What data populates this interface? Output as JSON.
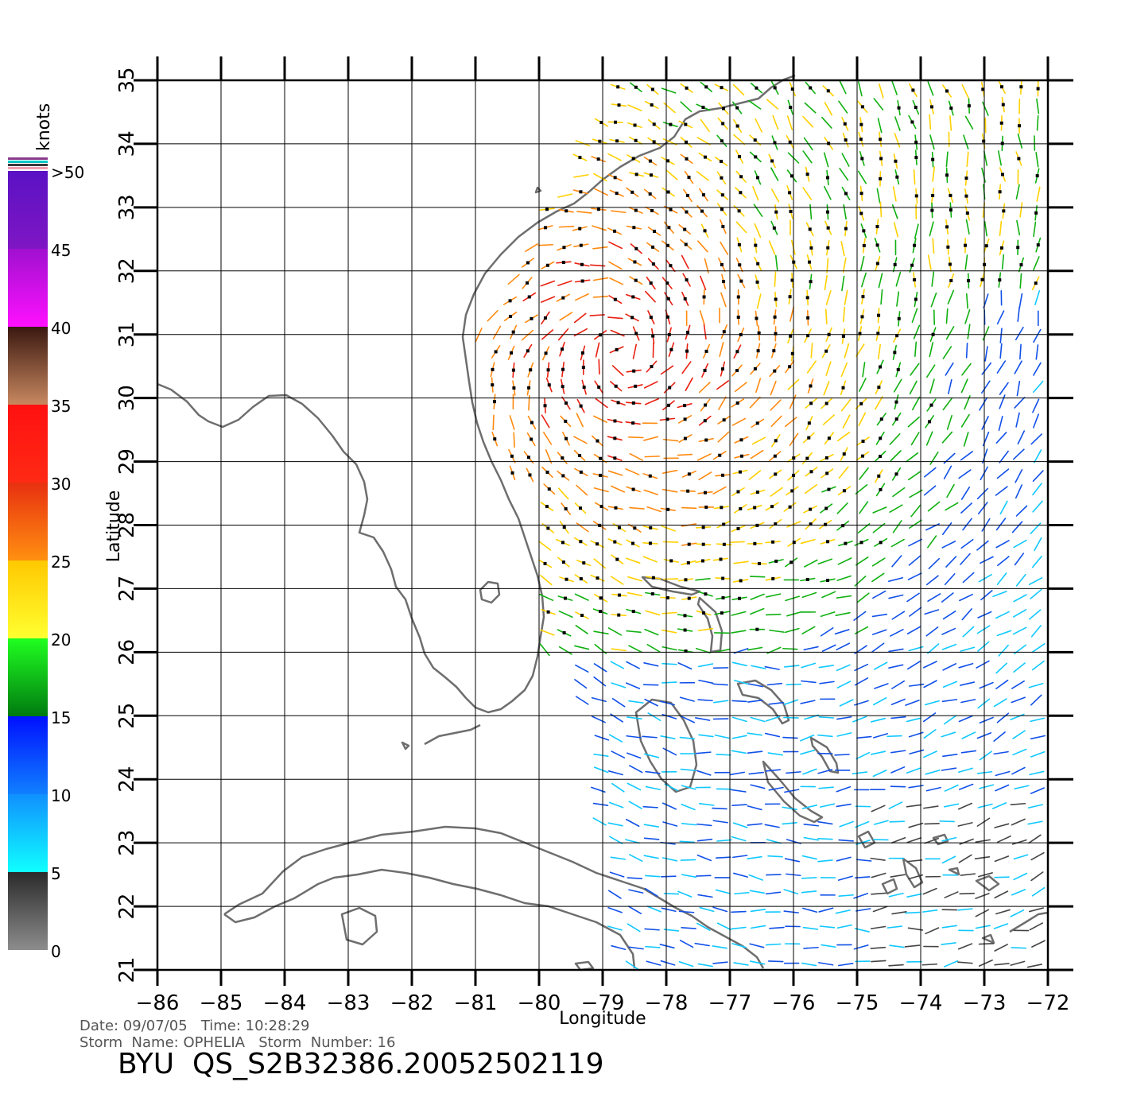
{
  "legend": {
    "unit": "knots",
    "labels": [
      ">50",
      "45",
      "40",
      "35",
      "30",
      "25",
      "20",
      "15",
      "10",
      "5",
      "0"
    ],
    "bands": [
      {
        "from": 50,
        "to": 45,
        "top": "#5a12c4",
        "bottom": "#7f16c4"
      },
      {
        "from": 45,
        "to": 40,
        "top": "#a010d0",
        "bottom": "#ff10ff"
      },
      {
        "from": 40,
        "to": 35,
        "top": "#3a1810",
        "bottom": "#c88860"
      },
      {
        "from": 35,
        "to": 30,
        "top": "#ff1010",
        "bottom": "#ff2a14"
      },
      {
        "from": 30,
        "to": 25,
        "top": "#e83010",
        "bottom": "#ff9010"
      },
      {
        "from": 25,
        "to": 20,
        "top": "#ffc800",
        "bottom": "#ffff30"
      },
      {
        "from": 20,
        "to": 15,
        "top": "#20ff20",
        "bottom": "#007a10"
      },
      {
        "from": 15,
        "to": 10,
        "top": "#0010ff",
        "bottom": "#1080ff"
      },
      {
        "from": 10,
        "to": 5,
        "top": "#1090ff",
        "bottom": "#10ffff"
      },
      {
        "from": 5,
        "to": 0,
        "top": "#2a2a2a",
        "bottom": "#8c8c8c"
      }
    ]
  },
  "axes": {
    "xlabel": "Longitude",
    "ylabel": "Latitude",
    "xticks": [
      "−86",
      "−85",
      "−84",
      "−83",
      "−82",
      "−81",
      "−80",
      "−79",
      "−78",
      "−77",
      "−76",
      "−75",
      "−74",
      "−73",
      "−72"
    ],
    "yticks": [
      "21",
      "22",
      "23",
      "24",
      "25",
      "26",
      "27",
      "28",
      "29",
      "30",
      "31",
      "32",
      "33",
      "34",
      "35"
    ],
    "lon_range": [
      -86,
      -72
    ],
    "lat_range": [
      21,
      35
    ],
    "grid": true
  },
  "footer": {
    "date_line": "Date: 09/07/05   Time: 10:28:29",
    "storm_line": "Storm  Name: OPHELIA   Storm  Number: 16",
    "file_id": "BYU  QS_S2B32386.20052502119"
  },
  "colors": {
    "grid": "#000000",
    "coastline": "#6e6e6e",
    "calm_center": "#000000"
  }
}
